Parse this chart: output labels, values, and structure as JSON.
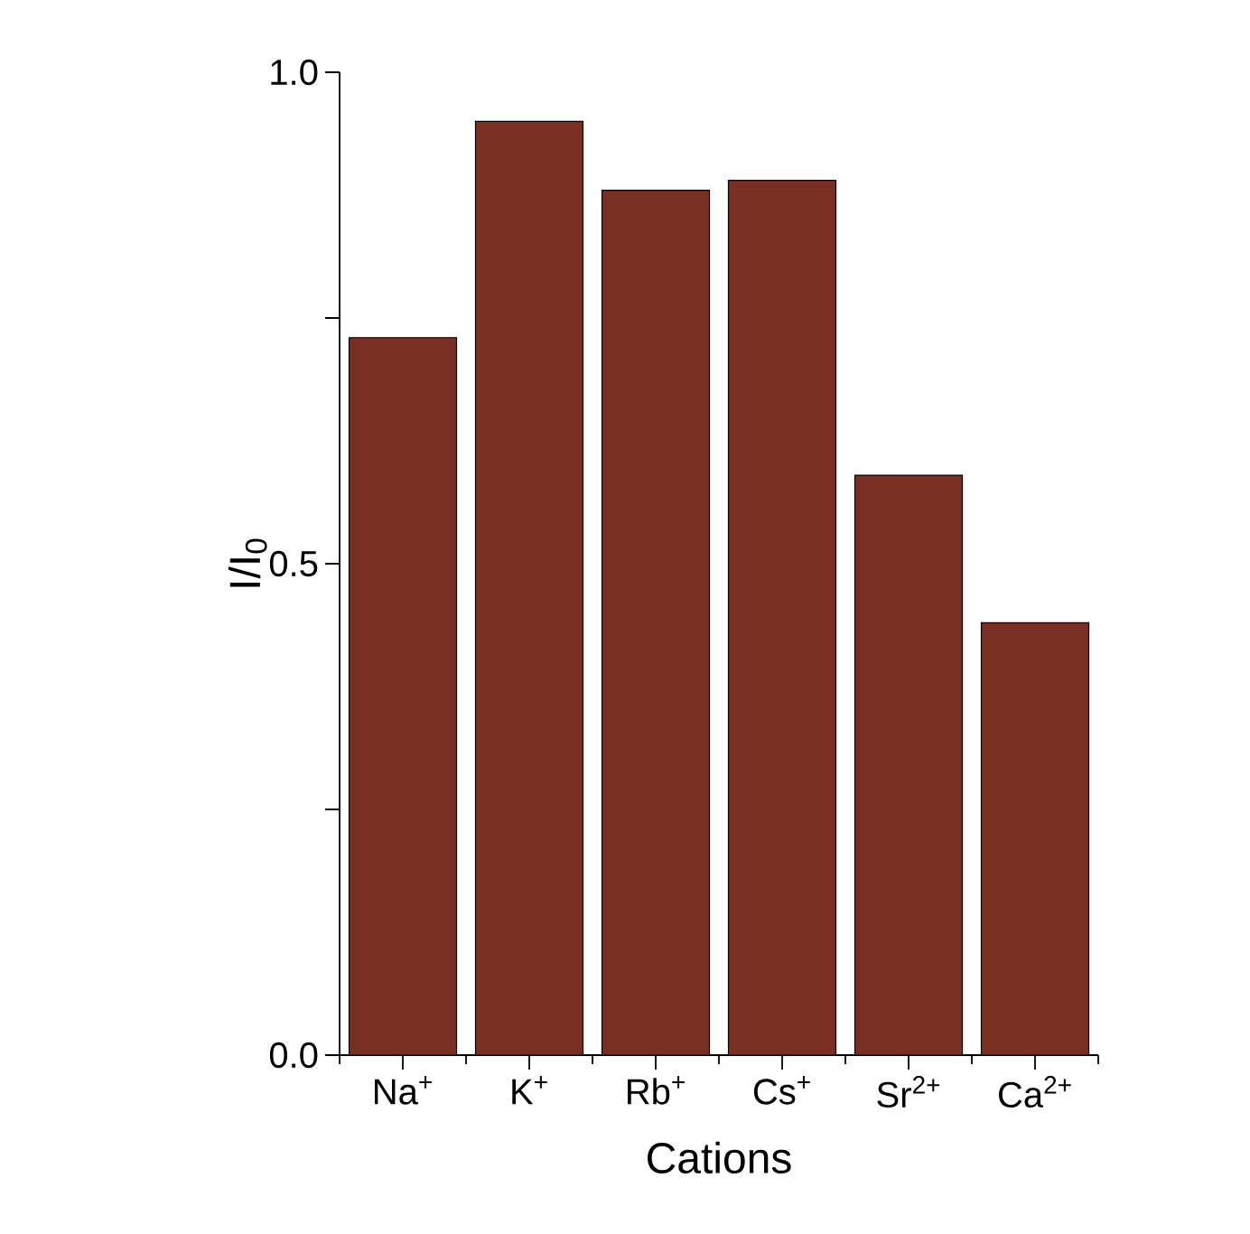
{
  "chart_data": {
    "type": "bar",
    "xlabel": "Cations",
    "ylabel": "I/I$_{0}$",
    "categories": [
      "Na$^{+}$",
      "K$^{+}$",
      "Rb$^{+}$",
      "Cs$^{+}$",
      "Sr$^{2+}$",
      "Ca$^{2+}$"
    ],
    "values": [
      0.73,
      0.95,
      0.88,
      0.89,
      0.59,
      0.44
    ],
    "color": "#7a2f24",
    "ylim": [
      0,
      1
    ],
    "yticks": [
      {
        "value": 0,
        "label": "0.0"
      },
      {
        "value": 0.25,
        "label": null
      },
      {
        "value": 0.5,
        "label": "0.5"
      },
      {
        "value": 0.75,
        "label": null
      },
      {
        "value": 1,
        "label": "1.0"
      }
    ],
    "grid": false
  }
}
